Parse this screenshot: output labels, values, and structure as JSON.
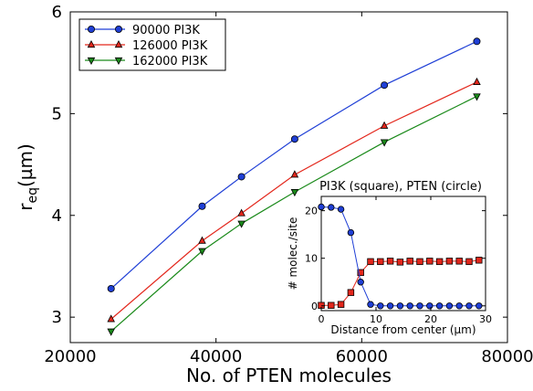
{
  "chart_data": [
    {
      "type": "line",
      "title": "",
      "xlabel": "No. of PTEN molecules",
      "ylabel": "r",
      "ylabel_sub": "eq",
      "ylabel_unit": "(µm)",
      "xlim": [
        20000,
        80000
      ],
      "ylim": [
        2.75,
        6.0
      ],
      "xticks": [
        20000,
        40000,
        60000,
        80000
      ],
      "xtick_labels": [
        "20000",
        "40000",
        "60000",
        "80000"
      ],
      "yticks": [
        3,
        4,
        5,
        6
      ],
      "ytick_labels": [
        "3",
        "4",
        "5",
        "6"
      ],
      "grid": false,
      "legend_position": "upper-left",
      "x": [
        25600,
        38100,
        43500,
        50800,
        63100,
        75800
      ],
      "series": [
        {
          "name": "90000 PI3K",
          "color": "#1f3fd6",
          "marker": "circle",
          "values": [
            3.28,
            4.09,
            4.38,
            4.75,
            5.28,
            5.71
          ]
        },
        {
          "name": "126000 PI3K",
          "color": "#e3271c",
          "marker": "triangle-up",
          "values": [
            2.98,
            3.75,
            4.02,
            4.4,
            4.88,
            5.31
          ]
        },
        {
          "name": "162000 PI3K",
          "color": "#1a8a1a",
          "marker": "triangle-down",
          "values": [
            2.86,
            3.65,
            3.92,
            4.23,
            4.72,
            5.17
          ]
        }
      ]
    },
    {
      "type": "line",
      "title": "PI3K (square), PTEN (circle)",
      "xlabel": "Distance from center (µm)",
      "ylabel": "# molec./site",
      "xlim": [
        0,
        30
      ],
      "ylim": [
        -1,
        23
      ],
      "xticks": [
        0,
        10,
        20,
        30
      ],
      "xtick_labels": [
        "0",
        "10",
        "20",
        "30"
      ],
      "yticks": [
        0,
        10,
        20
      ],
      "ytick_labels": [
        "0",
        "10",
        "20"
      ],
      "grid": false,
      "x": [
        0,
        1.8,
        3.6,
        5.4,
        7.2,
        9.0,
        10.8,
        12.6,
        14.4,
        16.2,
        18.0,
        19.8,
        21.6,
        23.4,
        25.2,
        27.0,
        28.8
      ],
      "series": [
        {
          "name": "PTEN",
          "color": "#1f3fd6",
          "marker": "circle",
          "values": [
            20.8,
            20.7,
            20.3,
            15.4,
            5.0,
            0.3,
            0.0,
            0.0,
            0.0,
            0.0,
            0.0,
            0.0,
            0.0,
            0.0,
            0.0,
            0.0,
            0.0
          ]
        },
        {
          "name": "PI3K",
          "color": "#e3271c",
          "marker": "square",
          "values": [
            0.1,
            0.1,
            0.3,
            2.8,
            7.0,
            9.3,
            9.3,
            9.4,
            9.2,
            9.4,
            9.3,
            9.4,
            9.3,
            9.4,
            9.4,
            9.3,
            9.6
          ]
        }
      ]
    }
  ]
}
